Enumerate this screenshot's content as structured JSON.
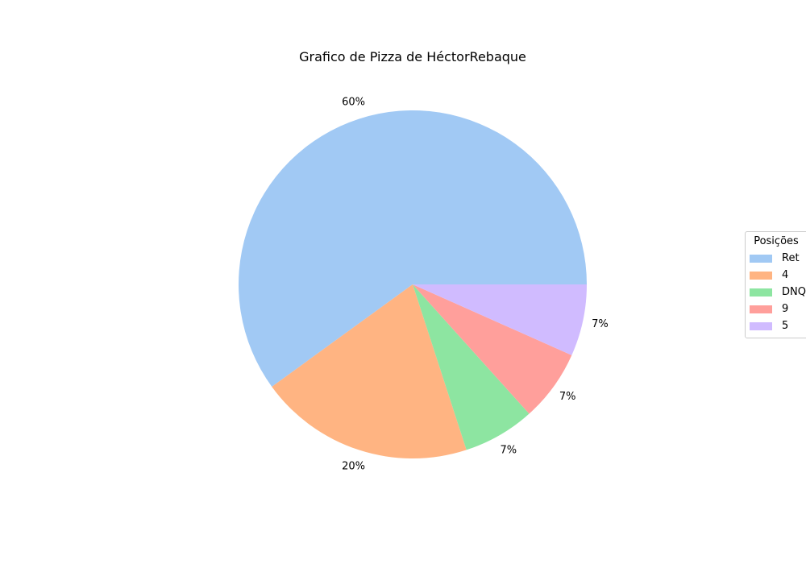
{
  "chart_data": {
    "type": "pie",
    "title": "Grafico de Pizza de HéctorRebaque",
    "categories": [
      "Ret",
      "4",
      "DNQ",
      "9",
      "5"
    ],
    "values": [
      9,
      3,
      1,
      1,
      1
    ],
    "percent_labels": [
      "60%",
      "20%",
      "7%",
      "7%",
      "7%"
    ],
    "colors": [
      "#a1c9f4",
      "#ffb482",
      "#8de5a1",
      "#ff9f9b",
      "#d0bbff"
    ],
    "start_angle_deg": 0,
    "direction": "counterclockwise",
    "legend": {
      "title": "Posições",
      "placement": "center-right"
    }
  }
}
